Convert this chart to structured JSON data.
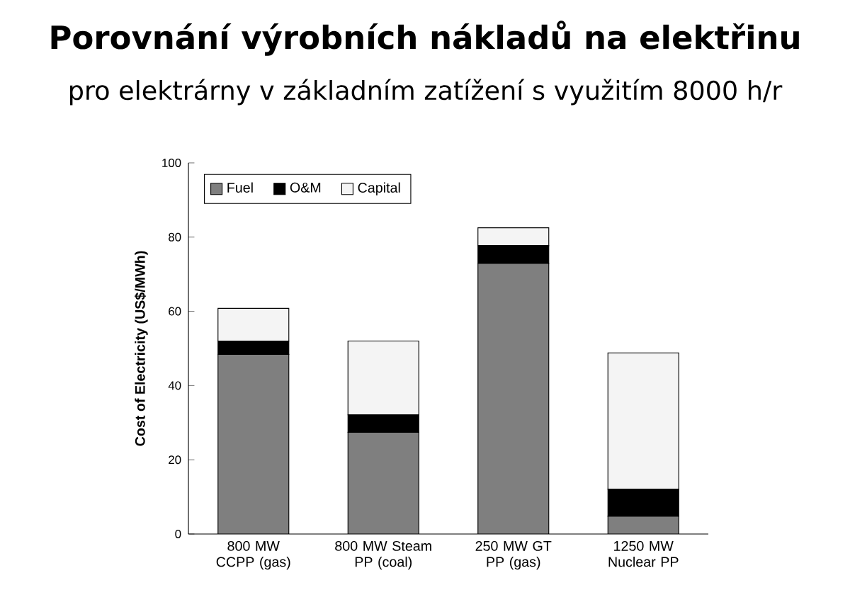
{
  "chart_data": {
    "type": "bar",
    "stacked": true,
    "title": "Porovnání výrobních nákladů na elektřinu",
    "subtitle": "pro elektrárny v základním zatížení s využitím 8000 h/r",
    "ylabel": "Cost of Electricity (US$/MWh)",
    "categories": [
      "800 MW CCPP (gas)",
      "800 MW Steam PP (coal)",
      "250 MW GT PP (gas)",
      "1250 MW Nuclear PP"
    ],
    "series": [
      {
        "name": "Fuel",
        "color": "#7f7f7f",
        "values": [
          48.4,
          27.4,
          72.9,
          4.8
        ]
      },
      {
        "name": "O&M",
        "color": "#000000",
        "values": [
          3.6,
          4.7,
          4.8,
          7.3
        ]
      },
      {
        "name": "Capital",
        "color": "#f4f4f4",
        "values": [
          8.8,
          19.9,
          4.8,
          36.7
        ]
      }
    ],
    "ylim": [
      0,
      100
    ],
    "yticks": [
      0,
      20,
      40,
      60,
      80,
      100
    ],
    "legend": "top left",
    "grid": false
  }
}
